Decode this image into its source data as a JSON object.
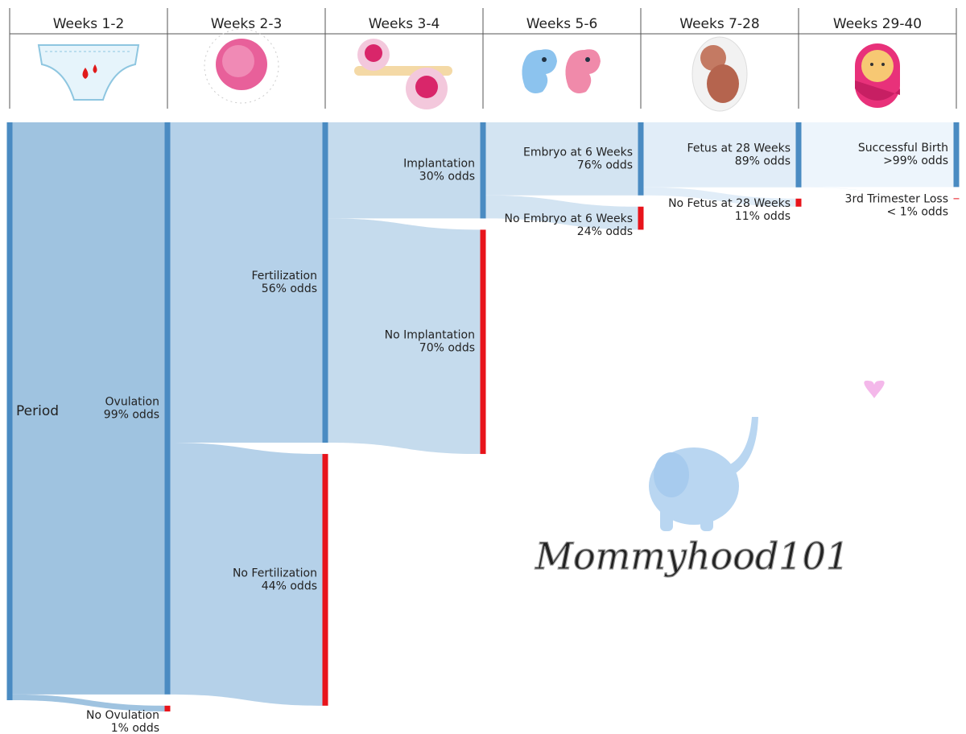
{
  "chart_data": {
    "type": "sankey",
    "columns": [
      "Weeks 1-2",
      "Weeks 2-3",
      "Weeks 3-4",
      "Weeks 5-6",
      "Weeks 7-28",
      "Weeks 29-40"
    ],
    "source": "Period",
    "stages": [
      {
        "success": {
          "name": "Ovulation",
          "value": 99,
          "value_label": "99% odds"
        },
        "failure": {
          "name": "No Ovulation",
          "value": 1,
          "value_label": "1% odds"
        }
      },
      {
        "success": {
          "name": "Fertilization",
          "value": 56,
          "value_label": "56% odds"
        },
        "failure": {
          "name": "No Fertilization",
          "value": 44,
          "value_label": "44% odds"
        }
      },
      {
        "success": {
          "name": "Implantation",
          "value": 30,
          "value_label": "30% odds"
        },
        "failure": {
          "name": "No Implantation",
          "value": 70,
          "value_label": "70% odds"
        }
      },
      {
        "success": {
          "name": "Embryo at 6 Weeks",
          "value": 76,
          "value_label": "76% odds"
        },
        "failure": {
          "name": "No Embryo at 6 Weeks",
          "value": 24,
          "value_label": "24% odds"
        }
      },
      {
        "success": {
          "name": "Fetus at 28 Weeks",
          "value": 89,
          "value_label": "89% odds"
        },
        "failure": {
          "name": "No Fetus at 28 Weeks",
          "value": 11,
          "value_label": "11% odds"
        }
      },
      {
        "success": {
          "name": "Successful Birth",
          "value": 99.5,
          "value_label": ">99% odds"
        },
        "failure": {
          "name": "3rd Trimester Loss",
          "value": 0.5,
          "value_label": "< 1% odds"
        }
      }
    ],
    "success_color": "#4a8bc2",
    "failure_color": "#e8141b",
    "link_colors": [
      "#9fc3e0",
      "#b5d1e9",
      "#c5dbed",
      "#d3e4f2",
      "#e1edf8",
      "#edf5fc"
    ],
    "watermark": "Mommyhood101"
  }
}
